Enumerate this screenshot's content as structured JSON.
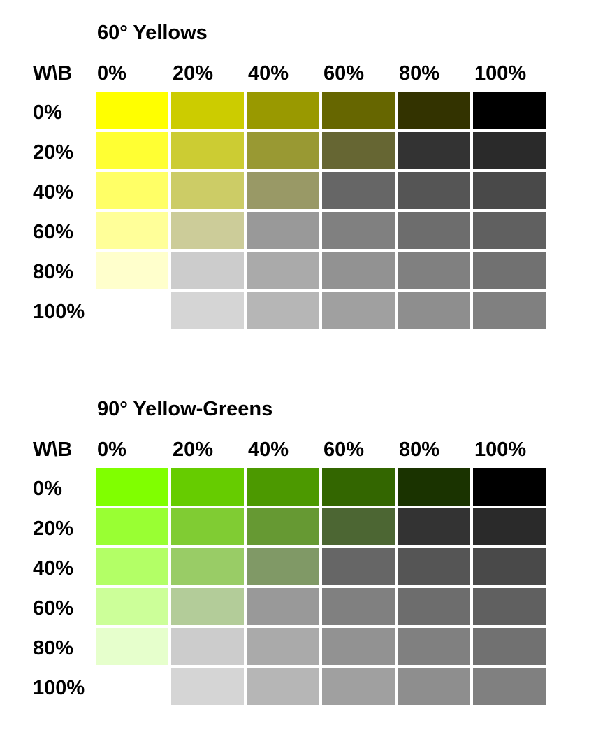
{
  "chart_data": [
    {
      "type": "heatmap",
      "title": "60° Yellows",
      "corner_label": "W\\B",
      "columns": [
        "0%",
        "20%",
        "40%",
        "60%",
        "80%",
        "100%"
      ],
      "rows": [
        "0%",
        "20%",
        "40%",
        "60%",
        "80%",
        "100%"
      ],
      "colors": [
        [
          "#ffff00",
          "#cccc00",
          "#999900",
          "#666600",
          "#333300",
          "#000000"
        ],
        [
          "#ffff33",
          "#cccc33",
          "#999933",
          "#666633",
          "#333333",
          "#2a2a2a"
        ],
        [
          "#ffff66",
          "#cccc66",
          "#999966",
          "#666666",
          "#555555",
          "#494949"
        ],
        [
          "#ffff99",
          "#cccc99",
          "#999999",
          "#808080",
          "#6d6d6d",
          "#606060"
        ],
        [
          "#ffffcc",
          "#cccccc",
          "#aaaaaa",
          "#929292",
          "#808080",
          "#717171"
        ],
        [
          "#ffffff",
          "#d5d5d5",
          "#b6b6b6",
          "#a0a0a0",
          "#8e8e8e",
          "#808080"
        ]
      ]
    },
    {
      "type": "heatmap",
      "title": "90° Yellow-Greens",
      "corner_label": "W\\B",
      "columns": [
        "0%",
        "20%",
        "40%",
        "60%",
        "80%",
        "100%"
      ],
      "rows": [
        "0%",
        "20%",
        "40%",
        "60%",
        "80%",
        "100%"
      ],
      "colors": [
        [
          "#80ff00",
          "#66cc00",
          "#4c9900",
          "#336600",
          "#1a3300",
          "#000000"
        ],
        [
          "#99ff33",
          "#80cc33",
          "#669933",
          "#4c6633",
          "#333333",
          "#2a2a2a"
        ],
        [
          "#b3ff66",
          "#99cc66",
          "#809966",
          "#666666",
          "#555555",
          "#494949"
        ],
        [
          "#ccff99",
          "#b3cc99",
          "#999999",
          "#808080",
          "#6d6d6d",
          "#606060"
        ],
        [
          "#e6ffcc",
          "#cccccc",
          "#aaaaaa",
          "#929292",
          "#808080",
          "#717171"
        ],
        [
          "#ffffff",
          "#d5d5d5",
          "#b6b6b6",
          "#a0a0a0",
          "#8e8e8e",
          "#808080"
        ]
      ]
    }
  ]
}
